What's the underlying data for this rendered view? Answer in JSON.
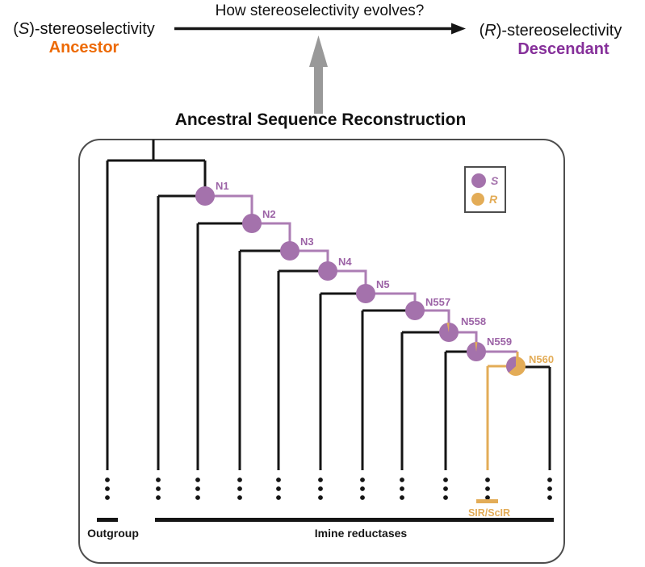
{
  "header": {
    "question": "How stereoselectivity evolves?",
    "ancestor": {
      "paren_open": "(",
      "letter": "S",
      "rest": ")-stereoselectivity",
      "role": "Ancestor"
    },
    "descendant": {
      "paren_open": "(",
      "letter": "R",
      "rest": ")-stereoselectivity",
      "role": "Descendant"
    },
    "asr_title": "Ancestral Sequence Reconstruction"
  },
  "legend": {
    "s": "S",
    "r": "R"
  },
  "chart_data": {
    "type": "pie",
    "description": "Phylogenetic tree (ancestral sequence reconstruction); each ancestral node is a pie of predicted stereoselectivity",
    "nodes": [
      {
        "label": "N1",
        "s": 1.0,
        "r": 0.0
      },
      {
        "label": "N2",
        "s": 1.0,
        "r": 0.0
      },
      {
        "label": "N3",
        "s": 1.0,
        "r": 0.0
      },
      {
        "label": "N4",
        "s": 1.0,
        "r": 0.0
      },
      {
        "label": "N5",
        "s": 1.0,
        "r": 0.0
      },
      {
        "label": "N557",
        "s": 1.0,
        "r": 0.0
      },
      {
        "label": "N558",
        "s": 0.96,
        "r": 0.04,
        "wedge_start_deg": -12
      },
      {
        "label": "N559",
        "s": 0.96,
        "r": 0.04,
        "wedge_start_deg": -8
      },
      {
        "label": "N560",
        "s": 0.37,
        "r": 0.63,
        "wedge_start_deg": 227
      }
    ]
  },
  "tree": {
    "outgroup_label": "Outgroup",
    "clade_label": "Imine reductases",
    "sir_label": "SIR/ScIR"
  },
  "colors": {
    "s_purple": "#A472AC",
    "purple_line": "#AC7DB4",
    "purple_label": "#9C63A6",
    "r_yellow": "#E3AC57",
    "ancestor_orange": "#ED6A05",
    "descendant_purple": "#86309A",
    "arrow_gray": "#999999",
    "box_border": "#4D4D4D",
    "line_black": "#151515"
  }
}
